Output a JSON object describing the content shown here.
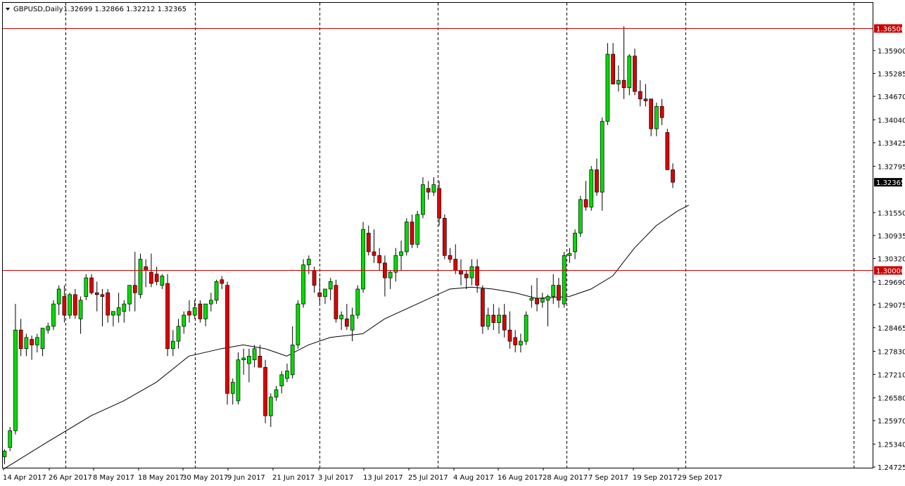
{
  "header": {
    "symbol": "GBPUSD,Daily",
    "ohlc": "1.32699 1.32866 1.32212 1.32365"
  },
  "colors": {
    "bull": "#00dd00",
    "bear": "#dd0000",
    "wick": "#000000",
    "level_line": "#cc0000",
    "ma": "#000000"
  },
  "chart_data": {
    "type": "candlestick",
    "instrument": "GBPUSD",
    "timeframe": "Daily",
    "y_ticks": [
      "1.36500",
      "1.35900",
      "1.35285",
      "1.34670",
      "1.34040",
      "1.33425",
      "1.32795",
      "1.32365",
      "1.31550",
      "1.30935",
      "1.30320",
      "1.30000",
      "1.29690",
      "1.29075",
      "1.28465",
      "1.27830",
      "1.27210",
      "1.26580",
      "1.25970",
      "1.25340",
      "1.24725"
    ],
    "x_ticks": [
      "14 Apr 2017",
      "26 Apr 2017",
      "8 May 2017",
      "18 May 2017",
      "30 May 2017",
      "9 Jun 2017",
      "21 Jun 2017",
      "3 Jul 2017",
      "13 Jul 2017",
      "25 Jul 2017",
      "4 Aug 2017",
      "16 Aug 2017",
      "28 Aug 2017",
      "7 Sep 2017",
      "19 Sep 2017",
      "29 Sep 2017"
    ],
    "ylim": [
      1.24725,
      1.3685
    ],
    "current_price": "1.32365",
    "levels": [
      {
        "value": 1.365,
        "label": "1.36500"
      },
      {
        "value": 1.3,
        "label": "1.30000"
      }
    ],
    "grid": "vertical dashed",
    "candles": [
      {
        "o": 1.25,
        "h": 1.252,
        "l": 1.248,
        "c": 1.2515
      },
      {
        "o": 1.2525,
        "h": 1.258,
        "l": 1.2515,
        "c": 1.257
      },
      {
        "o": 1.257,
        "h": 1.291,
        "l": 1.256,
        "c": 1.284
      },
      {
        "o": 1.284,
        "h": 1.287,
        "l": 1.277,
        "c": 1.279
      },
      {
        "o": 1.279,
        "h": 1.283,
        "l": 1.277,
        "c": 1.282
      },
      {
        "o": 1.2815,
        "h": 1.2825,
        "l": 1.276,
        "c": 1.28
      },
      {
        "o": 1.28,
        "h": 1.283,
        "l": 1.278,
        "c": 1.282
      },
      {
        "o": 1.279,
        "h": 1.284,
        "l": 1.277,
        "c": 1.2845
      },
      {
        "o": 1.284,
        "h": 1.286,
        "l": 1.283,
        "c": 1.285
      },
      {
        "o": 1.285,
        "h": 1.292,
        "l": 1.284,
        "c": 1.291
      },
      {
        "o": 1.291,
        "h": 1.296,
        "l": 1.288,
        "c": 1.295
      },
      {
        "o": 1.293,
        "h": 1.296,
        "l": 1.286,
        "c": 1.288
      },
      {
        "o": 1.288,
        "h": 1.294,
        "l": 1.287,
        "c": 1.2935
      },
      {
        "o": 1.2935,
        "h": 1.295,
        "l": 1.287,
        "c": 1.288
      },
      {
        "o": 1.287,
        "h": 1.293,
        "l": 1.283,
        "c": 1.292
      },
      {
        "o": 1.293,
        "h": 1.299,
        "l": 1.292,
        "c": 1.298
      },
      {
        "o": 1.298,
        "h": 1.299,
        "l": 1.2935,
        "c": 1.294
      },
      {
        "o": 1.294,
        "h": 1.297,
        "l": 1.289,
        "c": 1.2935
      },
      {
        "o": 1.2935,
        "h": 1.295,
        "l": 1.285,
        "c": 1.293
      },
      {
        "o": 1.294,
        "h": 1.295,
        "l": 1.286,
        "c": 1.288
      },
      {
        "o": 1.288,
        "h": 1.289,
        "l": 1.285,
        "c": 1.289
      },
      {
        "o": 1.288,
        "h": 1.294,
        "l": 1.286,
        "c": 1.29
      },
      {
        "o": 1.289,
        "h": 1.292,
        "l": 1.286,
        "c": 1.291
      },
      {
        "o": 1.291,
        "h": 1.296,
        "l": 1.289,
        "c": 1.296
      },
      {
        "o": 1.296,
        "h": 1.305,
        "l": 1.289,
        "c": 1.294
      },
      {
        "o": 1.2935,
        "h": 1.3045,
        "l": 1.2925,
        "c": 1.303
      },
      {
        "o": 1.301,
        "h": 1.303,
        "l": 1.2955,
        "c": 1.3
      },
      {
        "o": 1.2995,
        "h": 1.3045,
        "l": 1.2955,
        "c": 1.2965
      },
      {
        "o": 1.299,
        "h": 1.301,
        "l": 1.296,
        "c": 1.297
      },
      {
        "o": 1.296,
        "h": 1.299,
        "l": 1.295,
        "c": 1.2985
      },
      {
        "o": 1.2965,
        "h": 1.299,
        "l": 1.277,
        "c": 1.279
      },
      {
        "o": 1.279,
        "h": 1.284,
        "l": 1.277,
        "c": 1.281
      },
      {
        "o": 1.281,
        "h": 1.287,
        "l": 1.279,
        "c": 1.285
      },
      {
        "o": 1.285,
        "h": 1.289,
        "l": 1.283,
        "c": 1.288
      },
      {
        "o": 1.289,
        "h": 1.292,
        "l": 1.286,
        "c": 1.288
      },
      {
        "o": 1.288,
        "h": 1.292,
        "l": 1.287,
        "c": 1.29
      },
      {
        "o": 1.291,
        "h": 1.292,
        "l": 1.286,
        "c": 1.287
      },
      {
        "o": 1.287,
        "h": 1.291,
        "l": 1.285,
        "c": 1.291
      },
      {
        "o": 1.291,
        "h": 1.294,
        "l": 1.289,
        "c": 1.292
      },
      {
        "o": 1.292,
        "h": 1.2975,
        "l": 1.291,
        "c": 1.297
      },
      {
        "o": 1.2975,
        "h": 1.2985,
        "l": 1.295,
        "c": 1.2965
      },
      {
        "o": 1.296,
        "h": 1.297,
        "l": 1.264,
        "c": 1.267
      },
      {
        "o": 1.267,
        "h": 1.271,
        "l": 1.264,
        "c": 1.27
      },
      {
        "o": 1.265,
        "h": 1.278,
        "l": 1.264,
        "c": 1.276
      },
      {
        "o": 1.276,
        "h": 1.279,
        "l": 1.272,
        "c": 1.2765
      },
      {
        "o": 1.275,
        "h": 1.279,
        "l": 1.27,
        "c": 1.277
      },
      {
        "o": 1.276,
        "h": 1.28,
        "l": 1.274,
        "c": 1.279
      },
      {
        "o": 1.277,
        "h": 1.28,
        "l": 1.274,
        "c": 1.274
      },
      {
        "o": 1.274,
        "h": 1.276,
        "l": 1.259,
        "c": 1.261
      },
      {
        "o": 1.261,
        "h": 1.267,
        "l": 1.258,
        "c": 1.266
      },
      {
        "o": 1.266,
        "h": 1.269,
        "l": 1.265,
        "c": 1.268
      },
      {
        "o": 1.269,
        "h": 1.273,
        "l": 1.267,
        "c": 1.272
      },
      {
        "o": 1.271,
        "h": 1.275,
        "l": 1.27,
        "c": 1.273
      },
      {
        "o": 1.272,
        "h": 1.285,
        "l": 1.271,
        "c": 1.28
      },
      {
        "o": 1.28,
        "h": 1.292,
        "l": 1.279,
        "c": 1.291
      },
      {
        "o": 1.291,
        "h": 1.303,
        "l": 1.29,
        "c": 1.3015
      },
      {
        "o": 1.3015,
        "h": 1.304,
        "l": 1.299,
        "c": 1.303
      },
      {
        "o": 1.3,
        "h": 1.301,
        "l": 1.294,
        "c": 1.296
      },
      {
        "o": 1.294,
        "h": 1.298,
        "l": 1.291,
        "c": 1.293
      },
      {
        "o": 1.293,
        "h": 1.295,
        "l": 1.291,
        "c": 1.295
      },
      {
        "o": 1.295,
        "h": 1.298,
        "l": 1.292,
        "c": 1.297
      },
      {
        "o": 1.296,
        "h": 1.2975,
        "l": 1.286,
        "c": 1.287
      },
      {
        "o": 1.287,
        "h": 1.289,
        "l": 1.284,
        "c": 1.288
      },
      {
        "o": 1.287,
        "h": 1.291,
        "l": 1.284,
        "c": 1.285
      },
      {
        "o": 1.284,
        "h": 1.29,
        "l": 1.281,
        "c": 1.288
      },
      {
        "o": 1.288,
        "h": 1.296,
        "l": 1.287,
        "c": 1.295
      },
      {
        "o": 1.295,
        "h": 1.313,
        "l": 1.294,
        "c": 1.311
      },
      {
        "o": 1.31,
        "h": 1.312,
        "l": 1.304,
        "c": 1.305
      },
      {
        "o": 1.305,
        "h": 1.311,
        "l": 1.302,
        "c": 1.304
      },
      {
        "o": 1.304,
        "h": 1.306,
        "l": 1.3,
        "c": 1.302
      },
      {
        "o": 1.302,
        "h": 1.304,
        "l": 1.293,
        "c": 1.298
      },
      {
        "o": 1.298,
        "h": 1.3,
        "l": 1.295,
        "c": 1.2995
      },
      {
        "o": 1.2995,
        "h": 1.306,
        "l": 1.297,
        "c": 1.304
      },
      {
        "o": 1.304,
        "h": 1.308,
        "l": 1.3,
        "c": 1.305
      },
      {
        "o": 1.305,
        "h": 1.314,
        "l": 1.304,
        "c": 1.313
      },
      {
        "o": 1.313,
        "h": 1.315,
        "l": 1.306,
        "c": 1.307
      },
      {
        "o": 1.307,
        "h": 1.316,
        "l": 1.306,
        "c": 1.315
      },
      {
        "o": 1.315,
        "h": 1.325,
        "l": 1.314,
        "c": 1.323
      },
      {
        "o": 1.322,
        "h": 1.324,
        "l": 1.319,
        "c": 1.321
      },
      {
        "o": 1.321,
        "h": 1.325,
        "l": 1.32,
        "c": 1.323
      },
      {
        "o": 1.322,
        "h": 1.324,
        "l": 1.312,
        "c": 1.314
      },
      {
        "o": 1.314,
        "h": 1.315,
        "l": 1.303,
        "c": 1.304
      },
      {
        "o": 1.304,
        "h": 1.306,
        "l": 1.302,
        "c": 1.303
      },
      {
        "o": 1.303,
        "h": 1.307,
        "l": 1.299,
        "c": 1.3
      },
      {
        "o": 1.3,
        "h": 1.303,
        "l": 1.296,
        "c": 1.299
      },
      {
        "o": 1.299,
        "h": 1.3,
        "l": 1.295,
        "c": 1.298
      },
      {
        "o": 1.298,
        "h": 1.303,
        "l": 1.296,
        "c": 1.301
      },
      {
        "o": 1.301,
        "h": 1.303,
        "l": 1.294,
        "c": 1.296
      },
      {
        "o": 1.295,
        "h": 1.296,
        "l": 1.283,
        "c": 1.285
      },
      {
        "o": 1.285,
        "h": 1.29,
        "l": 1.284,
        "c": 1.288
      },
      {
        "o": 1.288,
        "h": 1.291,
        "l": 1.284,
        "c": 1.286
      },
      {
        "o": 1.286,
        "h": 1.29,
        "l": 1.283,
        "c": 1.288
      },
      {
        "o": 1.288,
        "h": 1.291,
        "l": 1.282,
        "c": 1.284
      },
      {
        "o": 1.284,
        "h": 1.289,
        "l": 1.279,
        "c": 1.281
      },
      {
        "o": 1.282,
        "h": 1.284,
        "l": 1.278,
        "c": 1.28
      },
      {
        "o": 1.28,
        "h": 1.283,
        "l": 1.278,
        "c": 1.281
      },
      {
        "o": 1.281,
        "h": 1.289,
        "l": 1.28,
        "c": 1.288
      },
      {
        "o": 1.292,
        "h": 1.296,
        "l": 1.29,
        "c": 1.2925
      },
      {
        "o": 1.2925,
        "h": 1.298,
        "l": 1.289,
        "c": 1.291
      },
      {
        "o": 1.2915,
        "h": 1.294,
        "l": 1.29,
        "c": 1.2925
      },
      {
        "o": 1.292,
        "h": 1.2935,
        "l": 1.285,
        "c": 1.293
      },
      {
        "o": 1.293,
        "h": 1.299,
        "l": 1.291,
        "c": 1.296
      },
      {
        "o": 1.296,
        "h": 1.298,
        "l": 1.29,
        "c": 1.292
      },
      {
        "o": 1.291,
        "h": 1.305,
        "l": 1.29,
        "c": 1.304
      },
      {
        "o": 1.304,
        "h": 1.306,
        "l": 1.302,
        "c": 1.3045
      },
      {
        "o": 1.305,
        "h": 1.311,
        "l": 1.303,
        "c": 1.31
      },
      {
        "o": 1.31,
        "h": 1.32,
        "l": 1.309,
        "c": 1.319
      },
      {
        "o": 1.319,
        "h": 1.324,
        "l": 1.316,
        "c": 1.317
      },
      {
        "o": 1.317,
        "h": 1.328,
        "l": 1.316,
        "c": 1.327
      },
      {
        "o": 1.327,
        "h": 1.33,
        "l": 1.32,
        "c": 1.321
      },
      {
        "o": 1.321,
        "h": 1.341,
        "l": 1.316,
        "c": 1.34
      },
      {
        "o": 1.34,
        "h": 1.361,
        "l": 1.339,
        "c": 1.358
      },
      {
        "o": 1.358,
        "h": 1.361,
        "l": 1.35,
        "c": 1.35
      },
      {
        "o": 1.35,
        "h": 1.355,
        "l": 1.348,
        "c": 1.351
      },
      {
        "o": 1.351,
        "h": 1.3655,
        "l": 1.346,
        "c": 1.349
      },
      {
        "o": 1.349,
        "h": 1.358,
        "l": 1.347,
        "c": 1.3575
      },
      {
        "o": 1.3575,
        "h": 1.3595,
        "l": 1.347,
        "c": 1.348
      },
      {
        "o": 1.348,
        "h": 1.351,
        "l": 1.344,
        "c": 1.346
      },
      {
        "o": 1.346,
        "h": 1.35,
        "l": 1.344,
        "c": 1.3455
      },
      {
        "o": 1.346,
        "h": 1.346,
        "l": 1.336,
        "c": 1.338
      },
      {
        "o": 1.338,
        "h": 1.345,
        "l": 1.336,
        "c": 1.344
      },
      {
        "o": 1.344,
        "h": 1.346,
        "l": 1.339,
        "c": 1.341
      },
      {
        "o": 1.337,
        "h": 1.338,
        "l": 1.327,
        "c": 1.327
      },
      {
        "o": 1.327,
        "h": 1.3287,
        "l": 1.3221,
        "c": 1.32365
      }
    ],
    "ma_period_unit": "daily",
    "ma_values": [
      [
        0,
        1.2468
      ],
      [
        8,
        1.254
      ],
      [
        16,
        1.261
      ],
      [
        22,
        1.265
      ],
      [
        28,
        1.27
      ],
      [
        34,
        1.277
      ],
      [
        40,
        1.279
      ],
      [
        44,
        1.28
      ],
      [
        48,
        1.279
      ],
      [
        52,
        1.277
      ],
      [
        56,
        1.28
      ],
      [
        60,
        1.282
      ],
      [
        66,
        1.283
      ],
      [
        70,
        1.287
      ],
      [
        76,
        1.291
      ],
      [
        82,
        1.295
      ],
      [
        86,
        1.2955
      ],
      [
        90,
        1.295
      ],
      [
        94,
        1.294
      ],
      [
        98,
        1.2925
      ],
      [
        104,
        1.293
      ],
      [
        108,
        1.295
      ],
      [
        112,
        1.2985
      ],
      [
        116,
        1.306
      ],
      [
        120,
        1.312
      ],
      [
        124,
        1.316
      ],
      [
        126,
        1.3175
      ]
    ]
  }
}
